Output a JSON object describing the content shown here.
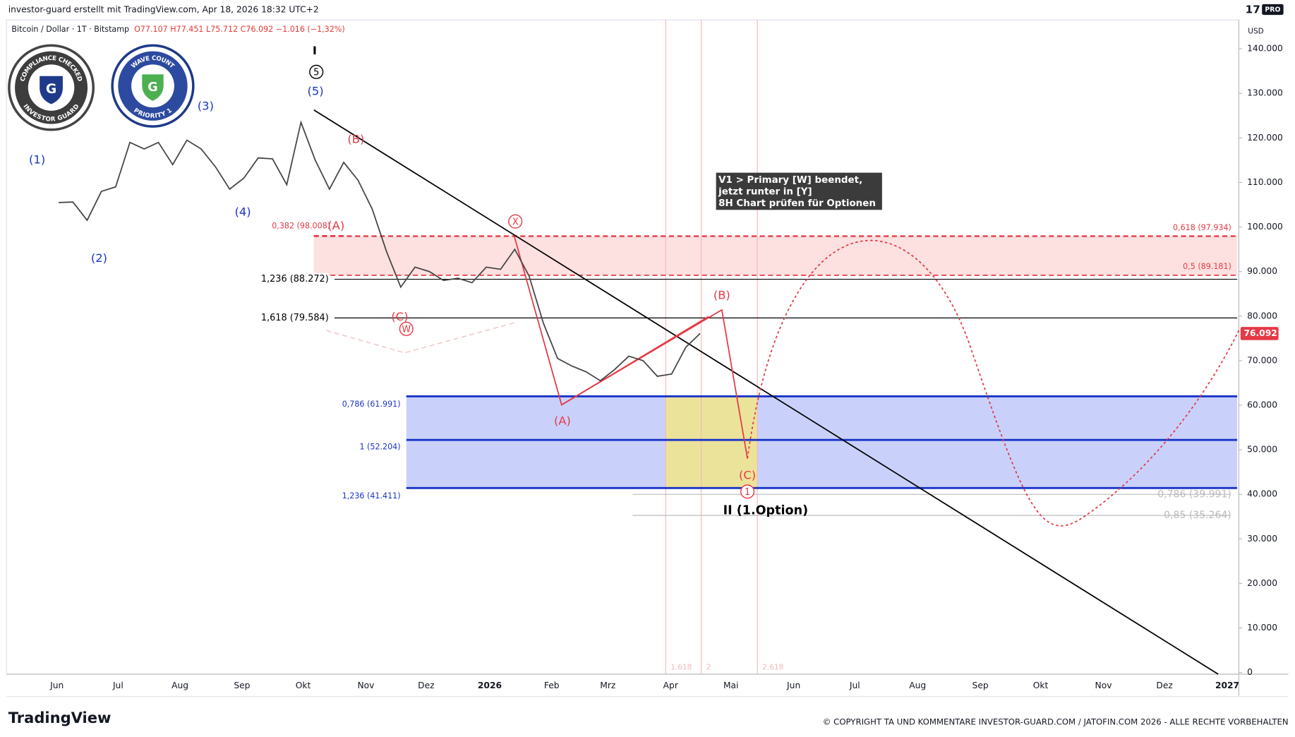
{
  "header": {
    "caption": "investor-guard erstellt mit TradingView.com, Apr 18, 2026 18:32 UTC+2",
    "symbol": "Bitcoin / Dollar · 1T · Bitstamp",
    "ohlc": "O77.107 H77.451 L75.712 C76.092 −1.016 (−1,32%)",
    "brand_pro": "PRO",
    "currency": "USD"
  },
  "badges": {
    "left_top": "COMPLIANCE CHECKED",
    "left_bottom": "INVESTOR GUARD",
    "right_top": "WAVE COUNT",
    "right_bottom": "PRIORITY 1"
  },
  "price_axis": {
    "range": [
      0,
      140000
    ],
    "ticks": [
      {
        "value": 140000,
        "label": "140.000"
      },
      {
        "value": 130000,
        "label": "130.000"
      },
      {
        "value": 120000,
        "label": "120.000"
      },
      {
        "value": 110000,
        "label": "110.000"
      },
      {
        "value": 100000,
        "label": "100.000"
      },
      {
        "value": 90000,
        "label": "90.000"
      },
      {
        "value": 80000,
        "label": "80.000"
      },
      {
        "value": 70000,
        "label": "70.000"
      },
      {
        "value": 60000,
        "label": "60.000"
      },
      {
        "value": 50000,
        "label": "50.000"
      },
      {
        "value": 40000,
        "label": "40.000"
      },
      {
        "value": 30000,
        "label": "30.000"
      },
      {
        "value": 20000,
        "label": "20.000"
      },
      {
        "value": 10000,
        "label": "10.000"
      },
      0
    ],
    "last_price": {
      "value": 76092,
      "label": "76.092"
    }
  },
  "time_axis": {
    "labels": [
      "Jun",
      "Jul",
      "Aug",
      "Sep",
      "Okt",
      "Nov",
      "Dez",
      "2026",
      "Feb",
      "Mrz",
      "Apr",
      "Mai",
      "Jun",
      "Jul",
      "Aug",
      "Sep",
      "Okt",
      "Nov",
      "Dez",
      "2027"
    ]
  },
  "price_path": {
    "values": [
      105500,
      105600,
      101500,
      108000,
      109000,
      119000,
      117500,
      119000,
      114000,
      119500,
      117500,
      113500,
      108500,
      111000,
      115500,
      115300,
      109500,
      123500,
      115000,
      108500,
      114500,
      110500,
      104000,
      94500,
      86500,
      91000,
      90000,
      88000,
      88500,
      87500,
      91000,
      90500,
      95000,
      89000,
      78500,
      70500,
      68800,
      67500,
      65500,
      68000,
      71000,
      70000,
      66500,
      67000,
      73000,
      76092
    ]
  },
  "fib_levels": [
    {
      "value": 98008,
      "label": "0,382 (98.008)"
    },
    {
      "value": 97934,
      "label": "0,618 (97.934)"
    },
    {
      "value": 89181,
      "label": "0,5 (89.181)"
    },
    {
      "value": 88272,
      "label": "1,236 (88.272)"
    },
    {
      "value": 79584,
      "label": "1,618 (79.584)"
    },
    {
      "value": 61991,
      "label": "0,786 (61.991)"
    },
    {
      "value": 52204,
      "label": "1 (52.204)"
    },
    {
      "value": 41411,
      "label": "1,236 (41.411)"
    },
    {
      "value": 39991,
      "label": "0,786 (39.991)"
    },
    {
      "value": 35264,
      "label": "0,85 (35.264)"
    }
  ],
  "time_fibs": [
    "1.618",
    "2",
    "2.618"
  ],
  "wave_labels": [
    "(1)",
    "(2)",
    "(3)",
    "(4)",
    "(5)",
    "I",
    "5",
    "(B)",
    "(A)",
    "(C)",
    "W",
    "X",
    "(A)",
    "(B)",
    "(C)",
    "1",
    "II (1.Option)"
  ],
  "note": [
    "V1 > Primary [W] beendet,",
    "jetzt runter in [Y]",
    "8H Chart prüfen für Optionen"
  ],
  "footer": {
    "logo": "TradingView",
    "copyright": "© COPYRIGHT TA UND KOMMENTARE INVESTOR-GUARD.COM / JATOFIN.COM 2026 - ALLE RECHTE VORBEHALTEN"
  }
}
